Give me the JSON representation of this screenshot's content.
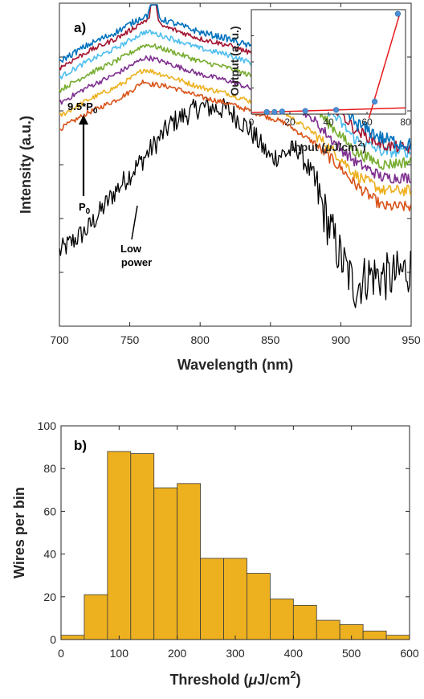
{
  "charts_meta": {
    "palette": [
      "#000000",
      "#d95319",
      "#edb120",
      "#7e2f8e",
      "#77ac30",
      "#4dbeee",
      "#a2142f",
      "#0072bd"
    ]
  },
  "chart_data": [
    {
      "id": "a",
      "type": "line",
      "panel_label": "a)",
      "xlabel": "Wavelength (nm)",
      "ylabel": "Intensity (a.u.)",
      "xlim": [
        700,
        950
      ],
      "x_ticks": [
        "700",
        "750",
        "800",
        "850",
        "900",
        "950"
      ],
      "ylim": [
        0,
        10
      ],
      "y_ticks_labeled": false,
      "grid": false,
      "annotations": {
        "top_power": "9.5*P",
        "top_power_sub": "0",
        "bottom_power": "P",
        "bottom_power_sub": "0",
        "low_power_line1": "Low",
        "low_power_line2": "power"
      },
      "series": [
        {
          "color": "#000000",
          "noise": 0.35,
          "points": [
            [
              700,
              2.3
            ],
            [
              720,
              3.0
            ],
            [
              740,
              4.2
            ],
            [
              760,
              5.2
            ],
            [
              780,
              6.3
            ],
            [
              800,
              6.8
            ],
            [
              820,
              6.7
            ],
            [
              835,
              6.1
            ],
            [
              850,
              5.2
            ],
            [
              870,
              5.5
            ],
            [
              880,
              4.6
            ],
            [
              890,
              3.3
            ],
            [
              900,
              2.1
            ],
            [
              910,
              1.2
            ],
            [
              920,
              1.6
            ],
            [
              935,
              1.5
            ],
            [
              950,
              1.8
            ]
          ]
        },
        {
          "color": "#d95319",
          "noise": 0.08,
          "points": [
            [
              700,
              6.1
            ],
            [
              720,
              6.6
            ],
            [
              740,
              7.0
            ],
            [
              750,
              7.25
            ],
            [
              760,
              7.6
            ],
            [
              765,
              7.5
            ],
            [
              780,
              7.4
            ],
            [
              800,
              7.1
            ],
            [
              820,
              6.9
            ],
            [
              840,
              6.6
            ],
            [
              860,
              6.3
            ],
            [
              880,
              5.7
            ],
            [
              900,
              4.9
            ],
            [
              910,
              4.4
            ],
            [
              930,
              3.7
            ],
            [
              950,
              3.7
            ]
          ]
        },
        {
          "color": "#edb120",
          "noise": 0.08,
          "points": [
            [
              700,
              6.5
            ],
            [
              720,
              7.0
            ],
            [
              740,
              7.4
            ],
            [
              750,
              7.65
            ],
            [
              760,
              7.95
            ],
            [
              765,
              7.9
            ],
            [
              780,
              7.7
            ],
            [
              800,
              7.4
            ],
            [
              820,
              7.2
            ],
            [
              840,
              6.9
            ],
            [
              860,
              6.6
            ],
            [
              880,
              6.0
            ],
            [
              900,
              5.2
            ],
            [
              910,
              4.7
            ],
            [
              930,
              4.2
            ],
            [
              950,
              4.2
            ]
          ]
        },
        {
          "color": "#7e2f8e",
          "noise": 0.08,
          "points": [
            [
              700,
              6.9
            ],
            [
              720,
              7.4
            ],
            [
              740,
              7.8
            ],
            [
              750,
              8.05
            ],
            [
              760,
              8.3
            ],
            [
              765,
              8.3
            ],
            [
              780,
              8.1
            ],
            [
              800,
              7.8
            ],
            [
              820,
              7.6
            ],
            [
              840,
              7.3
            ],
            [
              860,
              7.0
            ],
            [
              880,
              6.4
            ],
            [
              900,
              5.5
            ],
            [
              910,
              5.1
            ],
            [
              930,
              4.6
            ],
            [
              950,
              4.6
            ]
          ]
        },
        {
          "color": "#77ac30",
          "noise": 0.08,
          "points": [
            [
              700,
              7.3
            ],
            [
              720,
              7.8
            ],
            [
              740,
              8.2
            ],
            [
              750,
              8.45
            ],
            [
              760,
              8.7
            ],
            [
              765,
              8.7
            ],
            [
              780,
              8.5
            ],
            [
              800,
              8.2
            ],
            [
              820,
              8.0
            ],
            [
              840,
              7.7
            ],
            [
              860,
              7.4
            ],
            [
              880,
              6.8
            ],
            [
              900,
              5.9
            ],
            [
              910,
              5.4
            ],
            [
              930,
              5.0
            ],
            [
              950,
              5.1
            ]
          ]
        },
        {
          "color": "#4dbeee",
          "noise": 0.08,
          "points": [
            [
              700,
              7.7
            ],
            [
              720,
              8.2
            ],
            [
              740,
              8.6
            ],
            [
              750,
              8.85
            ],
            [
              760,
              9.1
            ],
            [
              765,
              9.1
            ],
            [
              780,
              8.9
            ],
            [
              800,
              8.6
            ],
            [
              820,
              8.4
            ],
            [
              840,
              8.1
            ],
            [
              860,
              7.8
            ],
            [
              880,
              7.2
            ],
            [
              900,
              6.3
            ],
            [
              910,
              5.8
            ],
            [
              930,
              5.4
            ],
            [
              950,
              5.4
            ]
          ]
        },
        {
          "color": "#a2142f",
          "noise": 0.08,
          "peak": {
            "center": 767,
            "height": 1.2,
            "width": 1.6
          },
          "points": [
            [
              700,
              8.0
            ],
            [
              720,
              8.5
            ],
            [
              740,
              8.9
            ],
            [
              750,
              9.15
            ],
            [
              760,
              9.45
            ],
            [
              765,
              9.4
            ],
            [
              780,
              9.2
            ],
            [
              800,
              8.9
            ],
            [
              820,
              8.7
            ],
            [
              840,
              8.4
            ],
            [
              860,
              8.1
            ],
            [
              880,
              7.5
            ],
            [
              900,
              6.6
            ],
            [
              910,
              6.1
            ],
            [
              930,
              5.6
            ],
            [
              950,
              5.5
            ]
          ]
        },
        {
          "color": "#0072bd",
          "noise": 0.1,
          "peak": {
            "center": 767,
            "height": 2.3,
            "width": 1.5
          },
          "points": [
            [
              700,
              8.2
            ],
            [
              720,
              8.7
            ],
            [
              740,
              9.1
            ],
            [
              750,
              9.35
            ],
            [
              760,
              9.6
            ],
            [
              765,
              9.6
            ],
            [
              780,
              9.4
            ],
            [
              800,
              9.1
            ],
            [
              820,
              8.9
            ],
            [
              840,
              8.6
            ],
            [
              860,
              8.3
            ],
            [
              880,
              7.7
            ],
            [
              900,
              6.8
            ],
            [
              910,
              6.3
            ],
            [
              930,
              5.8
            ],
            [
              950,
              5.6
            ]
          ]
        }
      ]
    },
    {
      "id": "a_inset",
      "type": "scatter",
      "xlabel": "Input (",
      "xlabel_mu": "μ",
      "xlabel_unit": "J/cm",
      "xlabel_sup": "2",
      "xlabel_close": ")",
      "ylabel": "Output  (a. u.)",
      "xlim": [
        0,
        80
      ],
      "x_ticks": [
        "0",
        "20",
        "40",
        "60",
        "80"
      ],
      "ylim": [
        0,
        1
      ],
      "y_ticks_labeled": false,
      "points_x": [
        8,
        12,
        16,
        28,
        44,
        64,
        76
      ],
      "points_y": [
        0.02,
        0.02,
        0.025,
        0.03,
        0.04,
        0.12,
        0.96
      ],
      "fit_lines": [
        {
          "x": [
            0,
            80
          ],
          "y": [
            0.015,
            0.06
          ]
        },
        {
          "x": [
            61,
            77
          ],
          "y": [
            -0.04,
            0.96
          ]
        }
      ]
    },
    {
      "id": "b",
      "type": "bar",
      "panel_label": "b)",
      "xlabel": "Threshold (",
      "xlabel_mu": "μ",
      "xlabel_unit": "J/cm",
      "xlabel_sup": "2",
      "xlabel_close": ")",
      "ylabel": "Wires per bin",
      "xlim": [
        0,
        600
      ],
      "x_ticks": [
        "0",
        "100",
        "200",
        "300",
        "400",
        "500",
        "600"
      ],
      "ylim": [
        0,
        100
      ],
      "y_ticks": [
        "0",
        "20",
        "40",
        "60",
        "80",
        "100"
      ],
      "bin_edges": [
        0,
        40,
        80,
        120,
        160,
        200,
        240,
        280,
        320,
        360,
        400,
        440,
        480,
        520,
        560,
        600
      ],
      "values": [
        2,
        21,
        88,
        87,
        71,
        73,
        38,
        38,
        31,
        19,
        16,
        9,
        7,
        4,
        2
      ],
      "bar_color": "#edb120"
    }
  ]
}
